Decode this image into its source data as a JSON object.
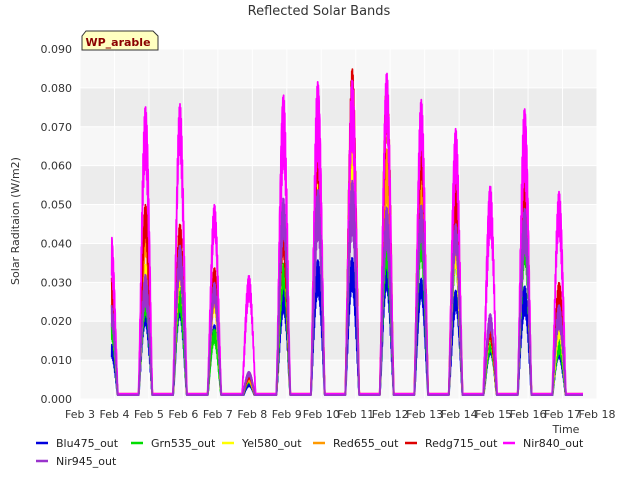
{
  "chart_data": {
    "type": "line",
    "title": "Reflected Solar Bands",
    "ylabel": "Solar Raditaion (W/m2)",
    "xlabel": "Time",
    "badge": "WP_arable",
    "ylim": [
      0,
      0.09
    ],
    "yticks": [
      "0.000",
      "0.010",
      "0.020",
      "0.030",
      "0.040",
      "0.050",
      "0.060",
      "0.070",
      "0.080",
      "0.090"
    ],
    "xlim": [
      3,
      18
    ],
    "xticks": [
      {
        "v": 3,
        "label": "Feb 3"
      },
      {
        "v": 4,
        "label": "Feb 4"
      },
      {
        "v": 5,
        "label": "Feb 5"
      },
      {
        "v": 6,
        "label": "Feb 6"
      },
      {
        "v": 7,
        "label": "Feb 7"
      },
      {
        "v": 8,
        "label": "Feb 8"
      },
      {
        "v": 9,
        "label": "Feb 9"
      },
      {
        "v": 10,
        "label": "Feb 10"
      },
      {
        "v": 11,
        "label": "Feb 11"
      },
      {
        "v": 12,
        "label": "Feb 12"
      },
      {
        "v": 13,
        "label": "Feb 13"
      },
      {
        "v": 14,
        "label": "Feb 14"
      },
      {
        "v": 15,
        "label": "Feb 15"
      },
      {
        "v": 16,
        "label": "Feb 16"
      },
      {
        "v": 17,
        "label": "Feb 17"
      },
      {
        "v": 18,
        "label": "Feb 18"
      }
    ],
    "grid": true,
    "legend_position": "bottom",
    "days": [
      3.9,
      4.9,
      5.9,
      6.9,
      7.9,
      8.9,
      9.9,
      10.9,
      11.9,
      12.9,
      13.9,
      14.9,
      15.9,
      16.9
    ],
    "series": [
      {
        "name": "Blu475_out",
        "color": "#0000dd",
        "peaks": [
          0.015,
          0.025,
          0.026,
          0.019,
          0.004,
          0.029,
          0.037,
          0.037,
          0.035,
          0.031,
          0.028,
          0.015,
          0.03,
          0.014
        ]
      },
      {
        "name": "Grn535_out",
        "color": "#00dd00",
        "peaks": [
          0.02,
          0.03,
          0.03,
          0.018,
          0.005,
          0.035,
          0.059,
          0.06,
          0.045,
          0.045,
          0.04,
          0.015,
          0.045,
          0.016
        ]
      },
      {
        "name": "Yel580_out",
        "color": "#ffff00",
        "peaks": [
          0.025,
          0.035,
          0.04,
          0.03,
          0.006,
          0.045,
          0.065,
          0.071,
          0.059,
          0.065,
          0.043,
          0.018,
          0.05,
          0.02
        ]
      },
      {
        "name": "Red655_out",
        "color": "#ff9900",
        "peaks": [
          0.028,
          0.045,
          0.043,
          0.033,
          0.006,
          0.048,
          0.07,
          0.08,
          0.065,
          0.068,
          0.05,
          0.02,
          0.057,
          0.025
        ]
      },
      {
        "name": "Redg715_out",
        "color": "#dd0000",
        "peaks": [
          0.032,
          0.05,
          0.045,
          0.034,
          0.007,
          0.05,
          0.072,
          0.085,
          0.082,
          0.072,
          0.062,
          0.021,
          0.058,
          0.03
        ]
      },
      {
        "name": "Nir840_out",
        "color": "#ff00ff",
        "peaks": [
          0.044,
          0.076,
          0.076,
          0.05,
          0.032,
          0.08,
          0.084,
          0.083,
          0.084,
          0.077,
          0.07,
          0.056,
          0.077,
          0.054
        ]
      },
      {
        "name": "Nir945_out",
        "color": "#9933cc",
        "peaks": [
          0.025,
          0.033,
          0.04,
          0.03,
          0.007,
          0.052,
          0.055,
          0.058,
          0.05,
          0.05,
          0.045,
          0.022,
          0.05,
          0.025
        ]
      }
    ]
  }
}
